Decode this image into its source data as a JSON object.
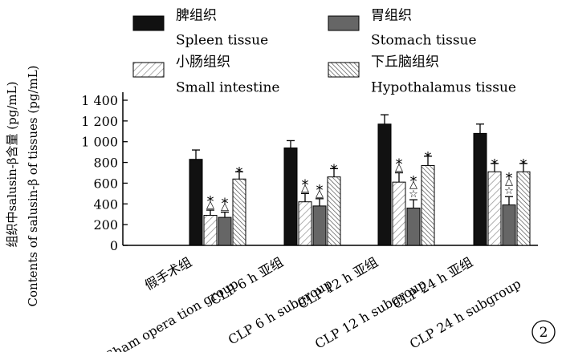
{
  "chart_data": {
    "type": "bar",
    "ylabel_cn": "组织中salusin-β含量 (pg/mL)",
    "ylabel_en": "Contents of salusin-β of tissues (pg/mL)",
    "ylim": [
      0,
      1400
    ],
    "yticks": [
      0,
      200,
      400,
      600,
      800,
      1000,
      1200,
      1400
    ],
    "ytick_labels": [
      "0",
      "200",
      "400",
      "600",
      "800",
      "1 000",
      "1 200",
      "1 400"
    ],
    "grid": false,
    "legend_position": "top",
    "categories": [
      {
        "cn": "假手术组",
        "en": "Sham opera tion group"
      },
      {
        "cn": "CLP 6 h 亚组",
        "en": "CLP 6 h subgroup"
      },
      {
        "cn": "CLP 12 h 亚组",
        "en": "CLP 12 h subgroup"
      },
      {
        "cn": "CLP 24 h 亚组",
        "en": "CLP 24 h subgroup"
      }
    ],
    "series": [
      {
        "name_cn": "脾组织",
        "name_en": "Spleen tissue",
        "color": "#111111",
        "pattern": "solid",
        "values": [
          830,
          940,
          1170,
          1080
        ],
        "errors": [
          90,
          70,
          90,
          90
        ],
        "marks": [
          "",
          "",
          "",
          ""
        ]
      },
      {
        "name_cn": "小肠组织",
        "name_en": "Small intestine",
        "color": "#ffffff",
        "pattern": "hatch-light",
        "values": [
          290,
          420,
          610,
          710
        ],
        "errors": [
          50,
          80,
          90,
          80
        ],
        "marks": [
          "*△",
          "*△",
          "*△",
          "*"
        ]
      },
      {
        "name_cn": "胃组织",
        "name_en": "Stomach tissue",
        "color": "#666666",
        "pattern": "solid",
        "values": [
          270,
          380,
          360,
          390
        ],
        "errors": [
          50,
          70,
          80,
          80
        ],
        "marks": [
          "*△",
          "*△",
          "*△☆",
          "*△☆"
        ]
      },
      {
        "name_cn": "下丘脑组织",
        "name_en": "Hypothalamus tissue",
        "color": "#ffffff",
        "pattern": "hatch-dense",
        "values": [
          640,
          660,
          770,
          710
        ],
        "errors": [
          70,
          80,
          90,
          80
        ],
        "marks": [
          "*",
          "*",
          "*",
          "*"
        ]
      }
    ],
    "panel_label": "2"
  }
}
